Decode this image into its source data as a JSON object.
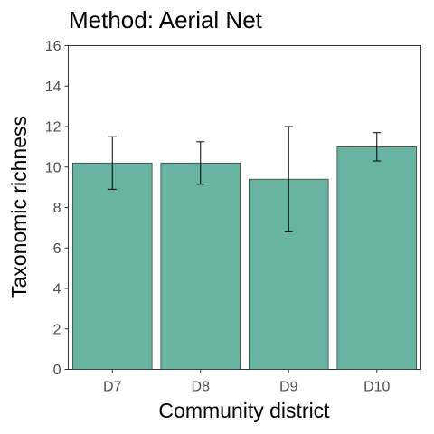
{
  "chart_data": {
    "type": "bar",
    "title": "Method: Aerial Net",
    "xlabel": "Community district",
    "ylabel": "Taxonomic richness",
    "categories": [
      "D7",
      "D8",
      "D9",
      "D10"
    ],
    "values": [
      10.2,
      10.2,
      9.4,
      11.0
    ],
    "error_low": [
      8.9,
      9.15,
      6.8,
      10.3
    ],
    "error_high": [
      11.5,
      11.25,
      12.0,
      11.7
    ],
    "ylim": [
      0,
      16
    ],
    "yticks": [
      0,
      2,
      4,
      6,
      8,
      10,
      12,
      14,
      16
    ],
    "grid": false,
    "legend": "none",
    "bar_color": "#69b3a2"
  }
}
